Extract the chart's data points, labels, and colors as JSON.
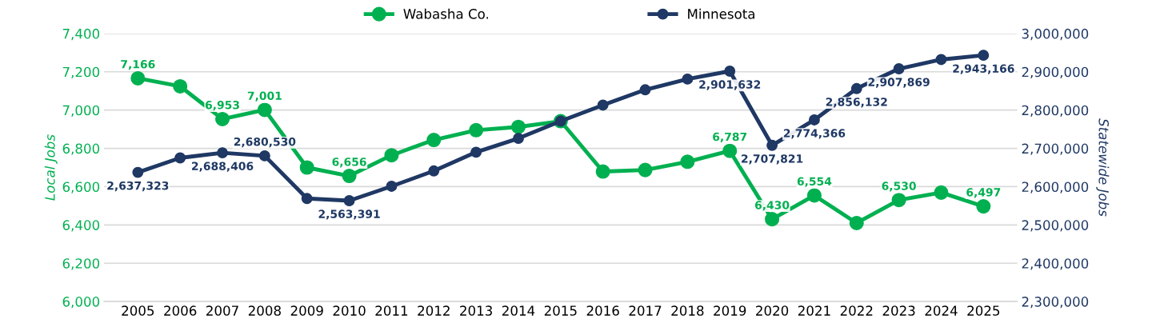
{
  "chart_data": {
    "type": "line",
    "ylabel": "Local Jobs",
    "y2label": "Statewide Jobs",
    "categories": [
      "2005",
      "2006",
      "2007",
      "2008",
      "2009",
      "2010",
      "2011",
      "2012",
      "2013",
      "2014",
      "2015",
      "2016",
      "2017",
      "2018",
      "2019",
      "2020",
      "2021",
      "2022",
      "2023",
      "2024",
      "2025"
    ],
    "series": [
      {
        "name": "Wabasha Co.",
        "color": "#00b050",
        "values": [
          7166,
          7124,
          6953,
          7001,
          6700,
          6656,
          6764,
          6844,
          6895,
          6912,
          6942,
          6679,
          6687,
          6730,
          6787,
          6430,
          6554,
          6410,
          6530,
          6569,
          6497
        ],
        "value_labels": [
          "7,166",
          null,
          "6,953",
          "7,001",
          null,
          "6,656",
          null,
          null,
          null,
          null,
          null,
          null,
          null,
          null,
          "6,787",
          "6,430",
          "6,554",
          null,
          "6,530",
          null,
          "6,497"
        ]
      },
      {
        "name": "Minnesota",
        "color": "#1f3864",
        "axis": "y2",
        "values": [
          2637323,
          2675000,
          2688406,
          2680530,
          2569000,
          2563391,
          2601000,
          2641000,
          2690000,
          2726000,
          2771000,
          2813000,
          2853000,
          2881000,
          2901632,
          2707821,
          2774366,
          2856132,
          2907869,
          2932000,
          2943166
        ],
        "value_labels": [
          "2,637,323",
          null,
          "2,688,406",
          "2,680,530",
          null,
          "2,563,391",
          null,
          null,
          null,
          null,
          null,
          null,
          null,
          null,
          "2,901,632",
          "2,707,821",
          "2,774,366",
          "2,856,132",
          "2,907,869",
          null,
          "2,943,166"
        ]
      }
    ],
    "ylim": [
      6000,
      7400
    ],
    "yticks": [
      {
        "value": 6000,
        "label": "6,000"
      },
      {
        "value": 6200,
        "label": "6,200"
      },
      {
        "value": 6400,
        "label": "6,400"
      },
      {
        "value": 6600,
        "label": "6,600"
      },
      {
        "value": 6800,
        "label": "6,800"
      },
      {
        "value": 7000,
        "label": "7,000"
      },
      {
        "value": 7200,
        "label": "7,200"
      },
      {
        "value": 7400,
        "label": "7,400"
      }
    ],
    "y2lim": [
      2300000,
      3000000
    ],
    "y2ticks": [
      {
        "value": 2300000,
        "label": "2,300,000"
      },
      {
        "value": 2400000,
        "label": "2,400,000"
      },
      {
        "value": 2500000,
        "label": "2,500,000"
      },
      {
        "value": 2600000,
        "label": "2,600,000"
      },
      {
        "value": 2700000,
        "label": "2,700,000"
      },
      {
        "value": 2800000,
        "label": "2,800,000"
      },
      {
        "value": 2900000,
        "label": "2,900,000"
      },
      {
        "value": 3000000,
        "label": "3,000,000"
      }
    ],
    "grid": "y",
    "legend": "top",
    "marker": "circle",
    "line_style": "solid"
  }
}
